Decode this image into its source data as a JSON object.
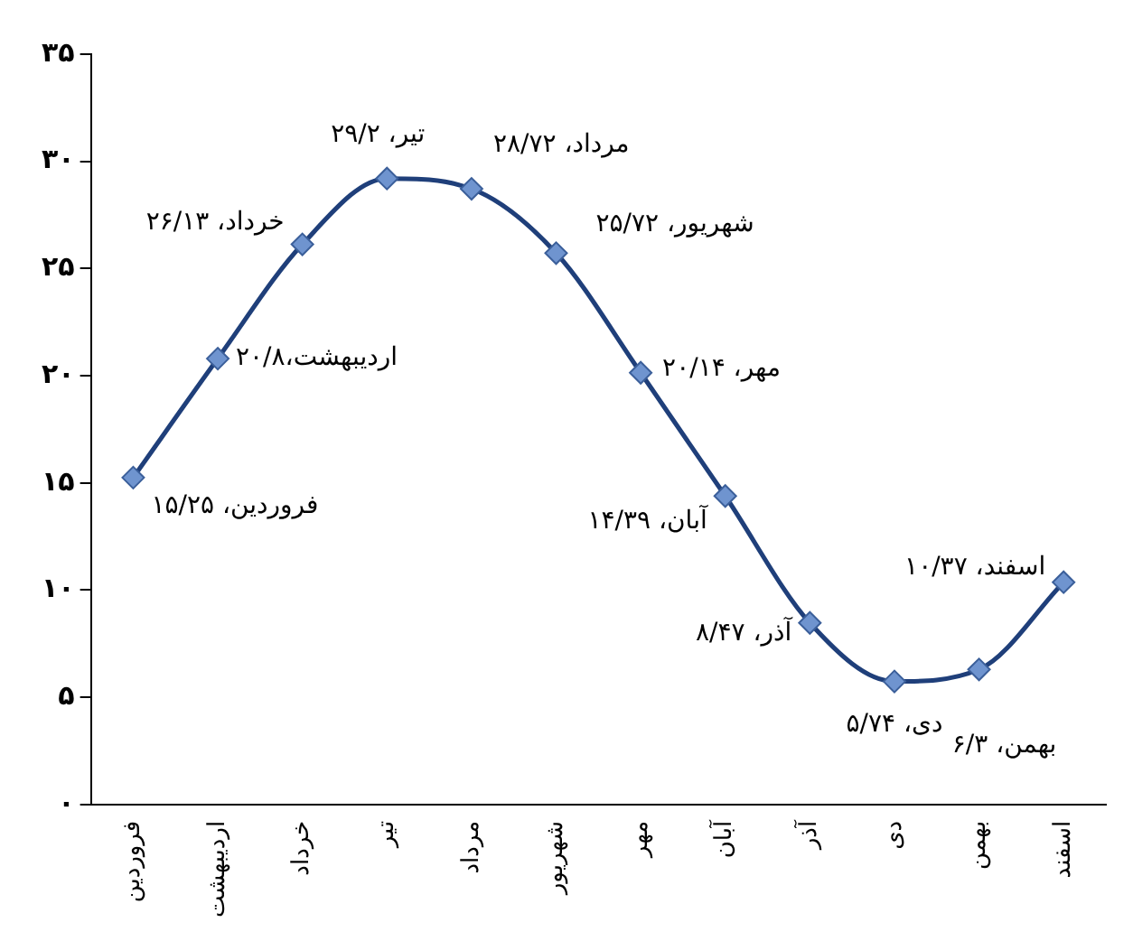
{
  "chart_data": {
    "type": "line",
    "categories": [
      "فروردین",
      "اردیبهشت",
      "خرداد",
      "تیر",
      "مرداد",
      "شهریور",
      "مهر",
      "آبان",
      "آذر",
      "دی",
      "بهمن",
      "اسفند"
    ],
    "series": [
      {
        "color": "#1f3f7a",
        "values": [
          15.25,
          20.8,
          26.13,
          29.2,
          28.72,
          25.72,
          20.14,
          14.39,
          8.47,
          5.74,
          6.3,
          10.37
        ],
        "value_labels": [
          "فروردین، ۱۵/۲۵",
          "اردیبهشت،۲۰/۸",
          "خرداد، ۲۶/۱۳",
          "تیر، ۲۹/۲",
          "مرداد، ۲۸/۷۲",
          "شهریور، ۲۵/۷۲",
          "مهر، ۲۰/۱۴",
          "آبان، ۱۴/۳۹",
          "آذر، ۸/۴۷",
          "دی، ۵/۷۴",
          "بهمن، ۶/۳",
          "اسفند، ۱۰/۳۷"
        ]
      }
    ],
    "ylim": [
      0,
      35
    ],
    "yticks": [
      {
        "value": 0,
        "label": "۰"
      },
      {
        "value": 5,
        "label": "۵"
      },
      {
        "value": 10,
        "label": "۱۰"
      },
      {
        "value": 15,
        "label": "۱۵"
      },
      {
        "value": 20,
        "label": "۲۰"
      },
      {
        "value": 25,
        "label": "۲۵"
      },
      {
        "value": 30,
        "label": "۳۰"
      },
      {
        "value": 35,
        "label": "۳۵"
      }
    ],
    "grid": false,
    "legend": false,
    "marker": "diamond",
    "line_style": "solid"
  }
}
